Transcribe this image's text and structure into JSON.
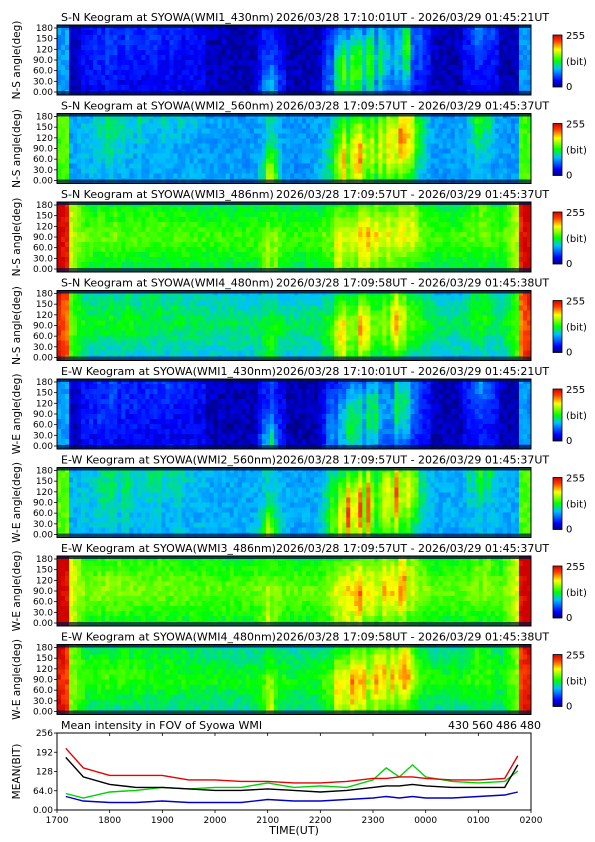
{
  "chart_data": [
    {
      "type": "heatmap",
      "title": "S-N Keogram at SYOWA(WMI1_430nm)",
      "time_range": "2026/03/28 17:10:01UT - 2026/03/29 01:45:21UT",
      "ylabel": "N-S angle(deg)",
      "yticks": [
        "180",
        "150",
        "120",
        "90.0",
        "60.0",
        "30.0",
        "0.00"
      ],
      "ylim": [
        0,
        180
      ],
      "colorbar": {
        "min": "0",
        "max": "255",
        "unit": "(bit)"
      },
      "profile": "weak",
      "base": 0.1
    },
    {
      "type": "heatmap",
      "title": "S-N Keogram at SYOWA(WMI2_560nm)",
      "time_range": "2026/03/28 17:09:57UT - 2026/03/29 01:45:37UT",
      "ylabel": "N-S angle(deg)",
      "yticks": [
        "180",
        "150",
        "120",
        "90.0",
        "60.0",
        "30.0",
        "0.00"
      ],
      "ylim": [
        0,
        180
      ],
      "colorbar": {
        "min": "0",
        "max": "255",
        "unit": "(bit)"
      },
      "profile": "strong",
      "base": 0.3
    },
    {
      "type": "heatmap",
      "title": "S-N Keogram at SYOWA(WMI3_486nm)",
      "time_range": "2026/03/28 17:09:57UT - 2026/03/29 01:45:37UT",
      "ylabel": "N-S angle(deg)",
      "yticks": [
        "180",
        "150",
        "120",
        "90.0",
        "60.0",
        "30.0",
        "0.00"
      ],
      "ylim": [
        0,
        180
      ],
      "colorbar": {
        "min": "0",
        "max": "255",
        "unit": "(bit)"
      },
      "profile": "bright",
      "base": 0.45
    },
    {
      "type": "heatmap",
      "title": "S-N Keogram at SYOWA(WMI4_480nm)",
      "time_range": "2026/03/28 17:09:58UT - 2026/03/29 01:45:38UT",
      "ylabel": "N-S angle(deg)",
      "yticks": [
        "180",
        "150",
        "120",
        "90.0",
        "60.0",
        "30.0",
        "0.00"
      ],
      "ylim": [
        0,
        180
      ],
      "colorbar": {
        "min": "0",
        "max": "255",
        "unit": "(bit)"
      },
      "profile": "medium",
      "base": 0.35
    },
    {
      "type": "heatmap",
      "title": "E-W Keogram at SYOWA(WMI1_430nm)",
      "time_range": "2026/03/28 17:10:01UT - 2026/03/29 01:45:21UT",
      "ylabel": "W-E angle(deg)",
      "yticks": [
        "180",
        "150",
        "120",
        "90.0",
        "60.0",
        "30.0",
        "0.00"
      ],
      "ylim": [
        0,
        180
      ],
      "colorbar": {
        "min": "0",
        "max": "255",
        "unit": "(bit)"
      },
      "profile": "weak",
      "base": 0.1
    },
    {
      "type": "heatmap",
      "title": "E-W Keogram at SYOWA(WMI2_560nm)",
      "time_range": "2026/03/28 17:09:57UT - 2026/03/29 01:45:37UT",
      "ylabel": "W-E angle(deg)",
      "yticks": [
        "180",
        "150",
        "120",
        "90.0",
        "60.0",
        "30.0",
        "0.00"
      ],
      "ylim": [
        0,
        180
      ],
      "colorbar": {
        "min": "0",
        "max": "255",
        "unit": "(bit)"
      },
      "profile": "strong",
      "base": 0.32
    },
    {
      "type": "heatmap",
      "title": "E-W Keogram at SYOWA(WMI3_486nm)",
      "time_range": "2026/03/28 17:09:57UT - 2026/03/29 01:45:37UT",
      "ylabel": "W-E angle(deg)",
      "yticks": [
        "180",
        "150",
        "120",
        "90.0",
        "60.0",
        "30.0",
        "0.00"
      ],
      "ylim": [
        0,
        180
      ],
      "colorbar": {
        "min": "0",
        "max": "255",
        "unit": "(bit)"
      },
      "profile": "bright",
      "base": 0.48
    },
    {
      "type": "heatmap",
      "title": "E-W Keogram at SYOWA(WMI4_480nm)",
      "time_range": "2026/03/28 17:09:58UT - 2026/03/29 01:45:38UT",
      "ylabel": "W-E angle(deg)",
      "yticks": [
        "180",
        "150",
        "120",
        "90.0",
        "60.0",
        "30.0",
        "0.00"
      ],
      "ylim": [
        0,
        180
      ],
      "colorbar": {
        "min": "0",
        "max": "255",
        "unit": "(bit)"
      },
      "profile": "medium",
      "base": 0.4
    },
    {
      "type": "line",
      "title": "Mean intensity in FOV of Syowa WMI",
      "ylabel": "MEAN(BIT)",
      "xlabel": "TIME(UT)",
      "yticks": [
        "256",
        "192",
        "128",
        "64.0",
        "0.00"
      ],
      "ylim": [
        0,
        256
      ],
      "xticks": [
        "1700",
        "1800",
        "1900",
        "2000",
        "2100",
        "2200",
        "2300",
        "0000",
        "0100",
        "0200"
      ],
      "x": [
        "1710",
        "1730",
        "1800",
        "1830",
        "1900",
        "1930",
        "2000",
        "2030",
        "2100",
        "2130",
        "2200",
        "2230",
        "2300",
        "2315",
        "2330",
        "2345",
        "0000",
        "0030",
        "0100",
        "0130",
        "0145"
      ],
      "series": [
        {
          "name": "430",
          "color": "#0000c8",
          "values": [
            45,
            30,
            25,
            25,
            30,
            25,
            25,
            25,
            35,
            30,
            30,
            35,
            40,
            45,
            40,
            45,
            40,
            40,
            45,
            50,
            60
          ]
        },
        {
          "name": "560",
          "color": "#00d200",
          "values": [
            55,
            40,
            60,
            65,
            75,
            70,
            75,
            75,
            90,
            75,
            80,
            75,
            100,
            140,
            110,
            150,
            110,
            95,
            90,
            95,
            130
          ]
        },
        {
          "name": "486",
          "color": "#e60000",
          "values": [
            205,
            140,
            115,
            115,
            115,
            100,
            100,
            95,
            95,
            90,
            90,
            95,
            105,
            105,
            110,
            110,
            105,
            100,
            100,
            105,
            180
          ]
        },
        {
          "name": "480",
          "color": "#000000",
          "values": [
            175,
            110,
            85,
            75,
            75,
            70,
            65,
            65,
            70,
            65,
            60,
            65,
            75,
            80,
            80,
            85,
            80,
            75,
            75,
            75,
            150
          ]
        }
      ]
    }
  ]
}
